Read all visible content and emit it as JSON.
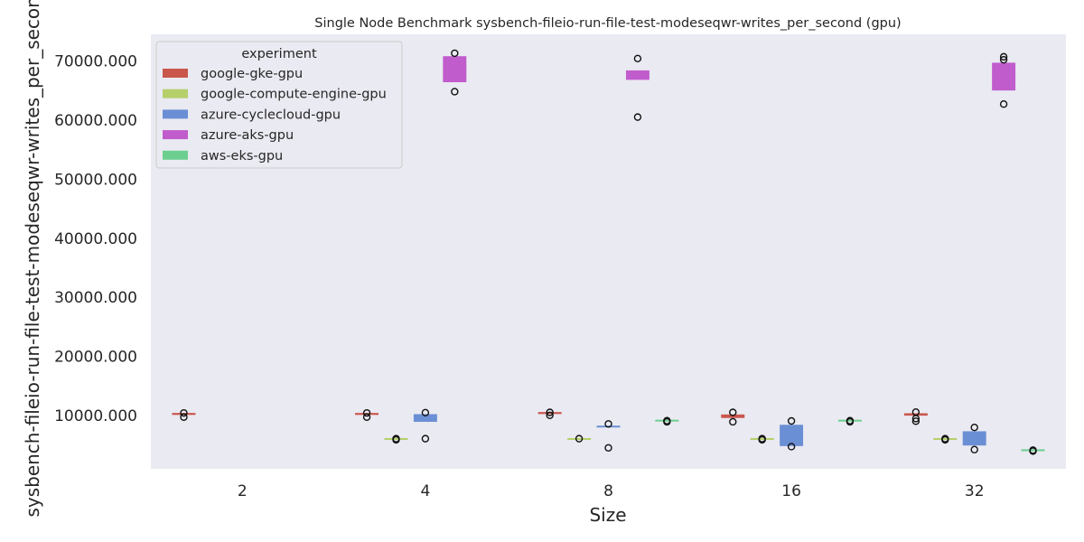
{
  "chart_data": {
    "type": "box",
    "title": "Single Node Benchmark sysbench-fileio-run-file-test-modeseqwr-writes_per_second (gpu)",
    "xlabel": "Size",
    "ylabel": "sysbench-fileio-run-file-test-modeseqwr-writes_per_second",
    "categories": [
      "2",
      "4",
      "8",
      "16",
      "32"
    ],
    "yticks": [
      "10000.000",
      "20000.000",
      "30000.000",
      "40000.000",
      "50000.000",
      "60000.000",
      "70000.000"
    ],
    "ylim": [
      1000,
      74500
    ],
    "legend": {
      "title": "experiment",
      "placement": "top-left"
    },
    "grid": false,
    "series": [
      {
        "name": "google-gke-gpu",
        "color": "#c9574c",
        "boxes": [
          {
            "category": "2",
            "q1": 10150,
            "median": 10200,
            "q3": 10300,
            "outliers": [
              10450,
              9750
            ]
          },
          {
            "category": "4",
            "q1": 10150,
            "median": 10200,
            "q3": 10300,
            "outliers": [
              10450,
              9750
            ]
          },
          {
            "category": "8",
            "q1": 10300,
            "median": 10350,
            "q3": 10450,
            "outliers": [
              10550,
              10050
            ]
          },
          {
            "category": "16",
            "q1": 9600,
            "median": 9900,
            "q3": 10200,
            "outliers": [
              10550,
              8950
            ]
          },
          {
            "category": "32",
            "q1": 10000,
            "median": 10200,
            "q3": 10400,
            "outliers": [
              10600,
              9500,
              9050
            ]
          }
        ]
      },
      {
        "name": "google-compute-engine-gpu",
        "color": "#b5cf6b",
        "boxes": [
          {
            "category": "4",
            "q1": 5950,
            "median": 6000,
            "q3": 6050,
            "outliers": [
              6100,
              5900
            ]
          },
          {
            "category": "8",
            "q1": 5950,
            "median": 6000,
            "q3": 6050,
            "outliers": [
              6100
            ]
          },
          {
            "category": "16",
            "q1": 5950,
            "median": 6000,
            "q3": 6050,
            "outliers": [
              6100,
              5900
            ]
          },
          {
            "category": "32",
            "q1": 5950,
            "median": 6000,
            "q3": 6050,
            "outliers": [
              6100,
              5900
            ]
          }
        ]
      },
      {
        "name": "azure-cyclecloud-gpu",
        "color": "#6b8fd4",
        "boxes": [
          {
            "category": "4",
            "q1": 8950,
            "median": 9600,
            "q3": 10250,
            "outliers": [
              10500,
              6100
            ]
          },
          {
            "category": "8",
            "q1": 8050,
            "median": 8100,
            "q3": 8150,
            "outliers": [
              8600,
              4550
            ]
          },
          {
            "category": "16",
            "q1": 4850,
            "median": 6500,
            "q3": 8450,
            "outliers": [
              9100,
              4750
            ]
          },
          {
            "category": "32",
            "q1": 4950,
            "median": 6200,
            "q3": 7350,
            "outliers": [
              8000,
              4250
            ]
          }
        ]
      },
      {
        "name": "azure-aks-gpu",
        "color": "#c05ccc",
        "boxes": [
          {
            "category": "4",
            "q1": 66400,
            "median": 68500,
            "q3": 70800,
            "outliers": [
              71300,
              64800
            ]
          },
          {
            "category": "8",
            "q1": 66800,
            "median": 67600,
            "q3": 68400,
            "outliers": [
              70400,
              60500
            ]
          },
          {
            "category": "16",
            "q1": 0,
            "median": 0,
            "q3": 0,
            "outliers": []
          },
          {
            "category": "32",
            "q1": 65000,
            "median": 67200,
            "q3": 69700,
            "outliers": [
              70700,
              70200,
              62700
            ]
          }
        ]
      },
      {
        "name": "aws-eks-gpu",
        "color": "#6ccf8f",
        "boxes": [
          {
            "category": "8",
            "q1": 9050,
            "median": 9100,
            "q3": 9150,
            "outliers": [
              9150,
              8950
            ]
          },
          {
            "category": "16",
            "q1": 9050,
            "median": 9100,
            "q3": 9150,
            "outliers": [
              9150,
              8950
            ]
          },
          {
            "category": "32",
            "q1": 4050,
            "median": 4100,
            "q3": 4150,
            "outliers": [
              4150,
              4000
            ]
          }
        ]
      }
    ]
  }
}
